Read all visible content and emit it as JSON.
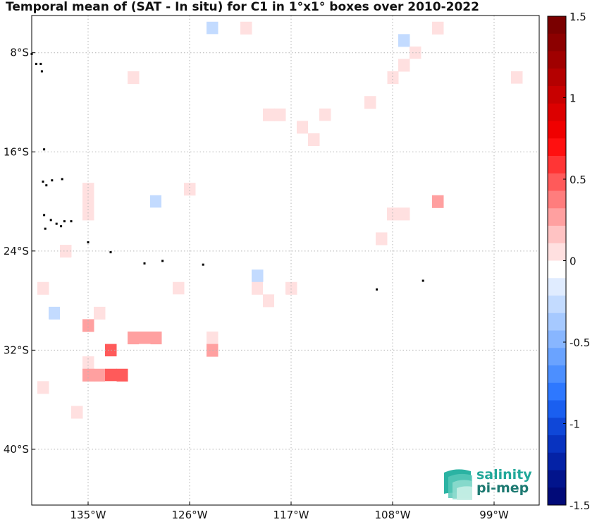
{
  "title": "Temporal mean of (SAT - In situ) for C1 in 1°x1° boxes over 2010-2022",
  "map": {
    "lon_range": [
      -140,
      -95
    ],
    "lat_range": [
      -44.5,
      -5
    ],
    "lat_ticks": [
      {
        "value": -8,
        "label": "8°S"
      },
      {
        "value": -16,
        "label": "16°S"
      },
      {
        "value": -24,
        "label": "24°S"
      },
      {
        "value": -32,
        "label": "32°S"
      },
      {
        "value": -40,
        "label": "40°S"
      }
    ],
    "lon_ticks": [
      {
        "value": -135,
        "label": "135°W"
      },
      {
        "value": -126,
        "label": "126°W"
      },
      {
        "value": -117,
        "label": "117°W"
      },
      {
        "value": -108,
        "label": "108°W"
      },
      {
        "value": -99,
        "label": "99°W"
      }
    ],
    "cells": [
      {
        "lon": -127,
        "lat": -7,
        "v": -0.1
      },
      {
        "lon": -126,
        "lat": -7,
        "v": -0.1
      },
      {
        "lon": -124,
        "lat": -6,
        "v": -0.3
      },
      {
        "lon": -124,
        "lat": -7,
        "v": -0.1
      },
      {
        "lon": -121,
        "lat": -6,
        "v": 0.1
      },
      {
        "lon": -107,
        "lat": -7,
        "v": -0.3
      },
      {
        "lon": -104,
        "lat": -6,
        "v": 0.1
      },
      {
        "lon": -106,
        "lat": -8,
        "v": 0.1
      },
      {
        "lon": -106,
        "lat": -9,
        "v": -0.1
      },
      {
        "lon": -107,
        "lat": -9,
        "v": 0.1
      },
      {
        "lon": -108,
        "lat": -10,
        "v": 0.1
      },
      {
        "lon": -109,
        "lat": -10,
        "v": -0.1
      },
      {
        "lon": -131,
        "lat": -10,
        "v": 0.1
      },
      {
        "lon": -97,
        "lat": -10,
        "v": 0.1
      },
      {
        "lon": -97,
        "lat": -11,
        "v": -0.1
      },
      {
        "lon": -102,
        "lat": -12,
        "v": -0.1
      },
      {
        "lon": -100,
        "lat": -12,
        "v": -0.1
      },
      {
        "lon": -99,
        "lat": -12,
        "v": -0.1
      },
      {
        "lon": -113,
        "lat": -11,
        "v": -0.1
      },
      {
        "lon": -112,
        "lat": -11,
        "v": -0.1
      },
      {
        "lon": -111,
        "lat": -11,
        "v": -0.1
      },
      {
        "lon": -113,
        "lat": -12,
        "v": -0.1
      },
      {
        "lon": -112,
        "lat": -12,
        "v": -0.1
      },
      {
        "lon": -111,
        "lat": -12,
        "v": -0.1
      },
      {
        "lon": -110,
        "lat": -12,
        "v": 0.1
      },
      {
        "lon": -114,
        "lat": -13,
        "v": 0.1
      },
      {
        "lon": -119,
        "lat": -13,
        "v": 0.1
      },
      {
        "lon": -118,
        "lat": -13,
        "v": 0.1
      },
      {
        "lon": -122,
        "lat": -14,
        "v": -0.1
      },
      {
        "lon": -121,
        "lat": -14,
        "v": -0.1
      },
      {
        "lon": -116,
        "lat": -14,
        "v": 0.1
      },
      {
        "lon": -115,
        "lat": -14,
        "v": -0.1
      },
      {
        "lon": -114,
        "lat": -14,
        "v": -0.1
      },
      {
        "lon": -125,
        "lat": -15,
        "v": -0.1
      },
      {
        "lon": -124,
        "lat": -15,
        "v": -0.1
      },
      {
        "lon": -123,
        "lat": -15,
        "v": -0.1
      },
      {
        "lon": -115,
        "lat": -15,
        "v": 0.1
      },
      {
        "lon": -112,
        "lat": -16,
        "v": -0.1
      },
      {
        "lon": -111,
        "lat": -16,
        "v": -0.1
      },
      {
        "lon": -101,
        "lat": -15,
        "v": -0.1
      },
      {
        "lon": -102,
        "lat": -16,
        "v": -0.1
      },
      {
        "lon": -101,
        "lat": -16,
        "v": -0.1
      },
      {
        "lon": -103,
        "lat": -16,
        "v": -0.1
      },
      {
        "lon": -126,
        "lat": -17,
        "v": -0.1
      },
      {
        "lon": -116,
        "lat": -18,
        "v": -0.1
      },
      {
        "lon": -135,
        "lat": -19,
        "v": 0.1
      },
      {
        "lon": -135,
        "lat": -20,
        "v": 0.1
      },
      {
        "lon": -135,
        "lat": -21,
        "v": 0.1
      },
      {
        "lon": -126,
        "lat": -19,
        "v": 0.1
      },
      {
        "lon": -122,
        "lat": -19,
        "v": -0.1
      },
      {
        "lon": -108,
        "lat": -19,
        "v": -0.1
      },
      {
        "lon": -129,
        "lat": -20,
        "v": -0.3
      },
      {
        "lon": -128,
        "lat": -20,
        "v": -0.1
      },
      {
        "lon": -129,
        "lat": -21,
        "v": -0.1
      },
      {
        "lon": -104,
        "lat": -20,
        "v": 0.3
      },
      {
        "lon": -125,
        "lat": -21,
        "v": -0.1
      },
      {
        "lon": -109,
        "lat": -21,
        "v": -0.1
      },
      {
        "lon": -108,
        "lat": -21,
        "v": 0.1
      },
      {
        "lon": -107,
        "lat": -21,
        "v": 0.1
      },
      {
        "lon": -112,
        "lat": -22,
        "v": -0.1
      },
      {
        "lon": -111,
        "lat": -22,
        "v": -0.1
      },
      {
        "lon": -112,
        "lat": -23,
        "v": -0.1
      },
      {
        "lon": -111,
        "lat": -23,
        "v": -0.1
      },
      {
        "lon": -110,
        "lat": -23,
        "v": -0.1
      },
      {
        "lon": -109,
        "lat": -23,
        "v": 0.1
      },
      {
        "lon": -137,
        "lat": -24,
        "v": 0.1
      },
      {
        "lon": -124,
        "lat": -24,
        "v": -0.1
      },
      {
        "lon": -117,
        "lat": -24,
        "v": -0.1
      },
      {
        "lon": -136,
        "lat": -25,
        "v": -0.1
      },
      {
        "lon": -135,
        "lat": -25,
        "v": -0.1
      },
      {
        "lon": -127,
        "lat": -25,
        "v": -0.1
      },
      {
        "lon": -126,
        "lat": -25,
        "v": -0.1
      },
      {
        "lon": -118,
        "lat": -25,
        "v": -0.1
      },
      {
        "lon": -124,
        "lat": -26,
        "v": -0.1
      },
      {
        "lon": -122,
        "lat": -26,
        "v": -0.1
      },
      {
        "lon": -120,
        "lat": -26,
        "v": -0.3
      },
      {
        "lon": -139,
        "lat": -27,
        "v": 0.1
      },
      {
        "lon": -137,
        "lat": -27,
        "v": -0.1
      },
      {
        "lon": -136,
        "lat": -27,
        "v": -0.1
      },
      {
        "lon": -127,
        "lat": -27,
        "v": 0.1
      },
      {
        "lon": -120,
        "lat": -27,
        "v": 0.1
      },
      {
        "lon": -119,
        "lat": -27,
        "v": -0.1
      },
      {
        "lon": -118,
        "lat": -27,
        "v": -0.1
      },
      {
        "lon": -117,
        "lat": -27,
        "v": 0.1
      },
      {
        "lon": -137,
        "lat": -28,
        "v": -0.1
      },
      {
        "lon": -136,
        "lat": -28,
        "v": -0.1
      },
      {
        "lon": -127,
        "lat": -28,
        "v": -0.1
      },
      {
        "lon": -119,
        "lat": -28,
        "v": 0.1
      },
      {
        "lon": -118,
        "lat": -28,
        "v": -0.1
      },
      {
        "lon": -139,
        "lat": -29,
        "v": -0.1
      },
      {
        "lon": -138,
        "lat": -29,
        "v": -0.3
      },
      {
        "lon": -137,
        "lat": -29,
        "v": -0.1
      },
      {
        "lon": -135,
        "lat": -29,
        "v": -0.1
      },
      {
        "lon": -134,
        "lat": -29,
        "v": 0.1
      },
      {
        "lon": -126,
        "lat": -29,
        "v": -0.1
      },
      {
        "lon": -139,
        "lat": -30,
        "v": -0.1
      },
      {
        "lon": -136,
        "lat": -30,
        "v": -0.1
      },
      {
        "lon": -135,
        "lat": -30,
        "v": 0.3
      },
      {
        "lon": -123,
        "lat": -30,
        "v": -0.1
      },
      {
        "lon": -131,
        "lat": -31,
        "v": 0.3
      },
      {
        "lon": -130,
        "lat": -31,
        "v": 0.3
      },
      {
        "lon": -129,
        "lat": -31,
        "v": 0.3
      },
      {
        "lon": -125,
        "lat": -31,
        "v": -0.1
      },
      {
        "lon": -124,
        "lat": -31,
        "v": 0.1
      },
      {
        "lon": -133,
        "lat": -32,
        "v": 0.5
      },
      {
        "lon": -130,
        "lat": -32,
        "v": -0.1
      },
      {
        "lon": -124,
        "lat": -32,
        "v": 0.3
      },
      {
        "lon": -135,
        "lat": -33,
        "v": 0.1
      },
      {
        "lon": -133,
        "lat": -33,
        "v": -0.1
      },
      {
        "lon": -135,
        "lat": -34,
        "v": 0.3
      },
      {
        "lon": -134,
        "lat": -34,
        "v": 0.3
      },
      {
        "lon": -133,
        "lat": -34,
        "v": 0.5
      },
      {
        "lon": -132,
        "lat": -34,
        "v": 0.5
      },
      {
        "lon": -139,
        "lat": -34,
        "v": -0.1
      },
      {
        "lon": -139,
        "lat": -35,
        "v": 0.1
      },
      {
        "lon": -133,
        "lat": -35,
        "v": -0.1
      },
      {
        "lon": -140,
        "lat": -37,
        "v": -0.1
      },
      {
        "lon": -138,
        "lat": -37,
        "v": -0.1
      },
      {
        "lon": -136,
        "lat": -37,
        "v": 0.1
      }
    ],
    "land": [
      [
        -140,
        -8.1
      ],
      [
        -139.6,
        -8.9
      ],
      [
        -139.2,
        -8.9
      ],
      [
        -139.1,
        -9.5
      ],
      [
        -138.9,
        -15.8
      ],
      [
        -139,
        -18.4
      ],
      [
        -138.7,
        -18.7
      ],
      [
        -138.2,
        -18.3
      ],
      [
        -137.3,
        -18.2
      ],
      [
        -138.9,
        -21.1
      ],
      [
        -138.3,
        -21.5
      ],
      [
        -137.8,
        -21.8
      ],
      [
        -137.1,
        -21.6
      ],
      [
        -136.5,
        -21.6
      ],
      [
        -138.8,
        -22.2
      ],
      [
        -137.4,
        -22.0
      ],
      [
        -135,
        -23.3
      ],
      [
        -133.0,
        -24.1
      ],
      [
        -128.4,
        -24.8
      ],
      [
        -130.0,
        -25.0
      ],
      [
        -124.8,
        -25.1
      ],
      [
        -109.4,
        -27.1
      ],
      [
        -105.3,
        -26.4
      ]
    ]
  },
  "colorbar": {
    "ticks": [
      {
        "value": 1.5,
        "label": "1.5"
      },
      {
        "value": 1,
        "label": "1"
      },
      {
        "value": 0.5,
        "label": "0.5"
      },
      {
        "value": 0,
        "label": "0"
      },
      {
        "value": -0.5,
        "label": "-0.5"
      },
      {
        "value": -1,
        "label": "-1"
      },
      {
        "value": -1.5,
        "label": "-1.5"
      }
    ],
    "range": [
      -1.5,
      1.5
    ],
    "colors_top_to_bottom": [
      "#7a0000",
      "#8c0000",
      "#a00000",
      "#b40000",
      "#c80000",
      "#dc0000",
      "#f00000",
      "#ff1010",
      "#ff3535",
      "#ff5a5a",
      "#ff7d7d",
      "#ffa0a0",
      "#ffc3c3",
      "#ffe0e0",
      "#ffffff",
      "#e0ecff",
      "#c3dbff",
      "#a6c9ff",
      "#88b6ff",
      "#6aa3ff",
      "#4c8fff",
      "#2e78ff",
      "#1a5ff0",
      "#0f47d8",
      "#0833c0",
      "#0422a6",
      "#02148c",
      "#010a78"
    ]
  },
  "logo": {
    "line1": "salinity",
    "line2": "pi-mep"
  }
}
